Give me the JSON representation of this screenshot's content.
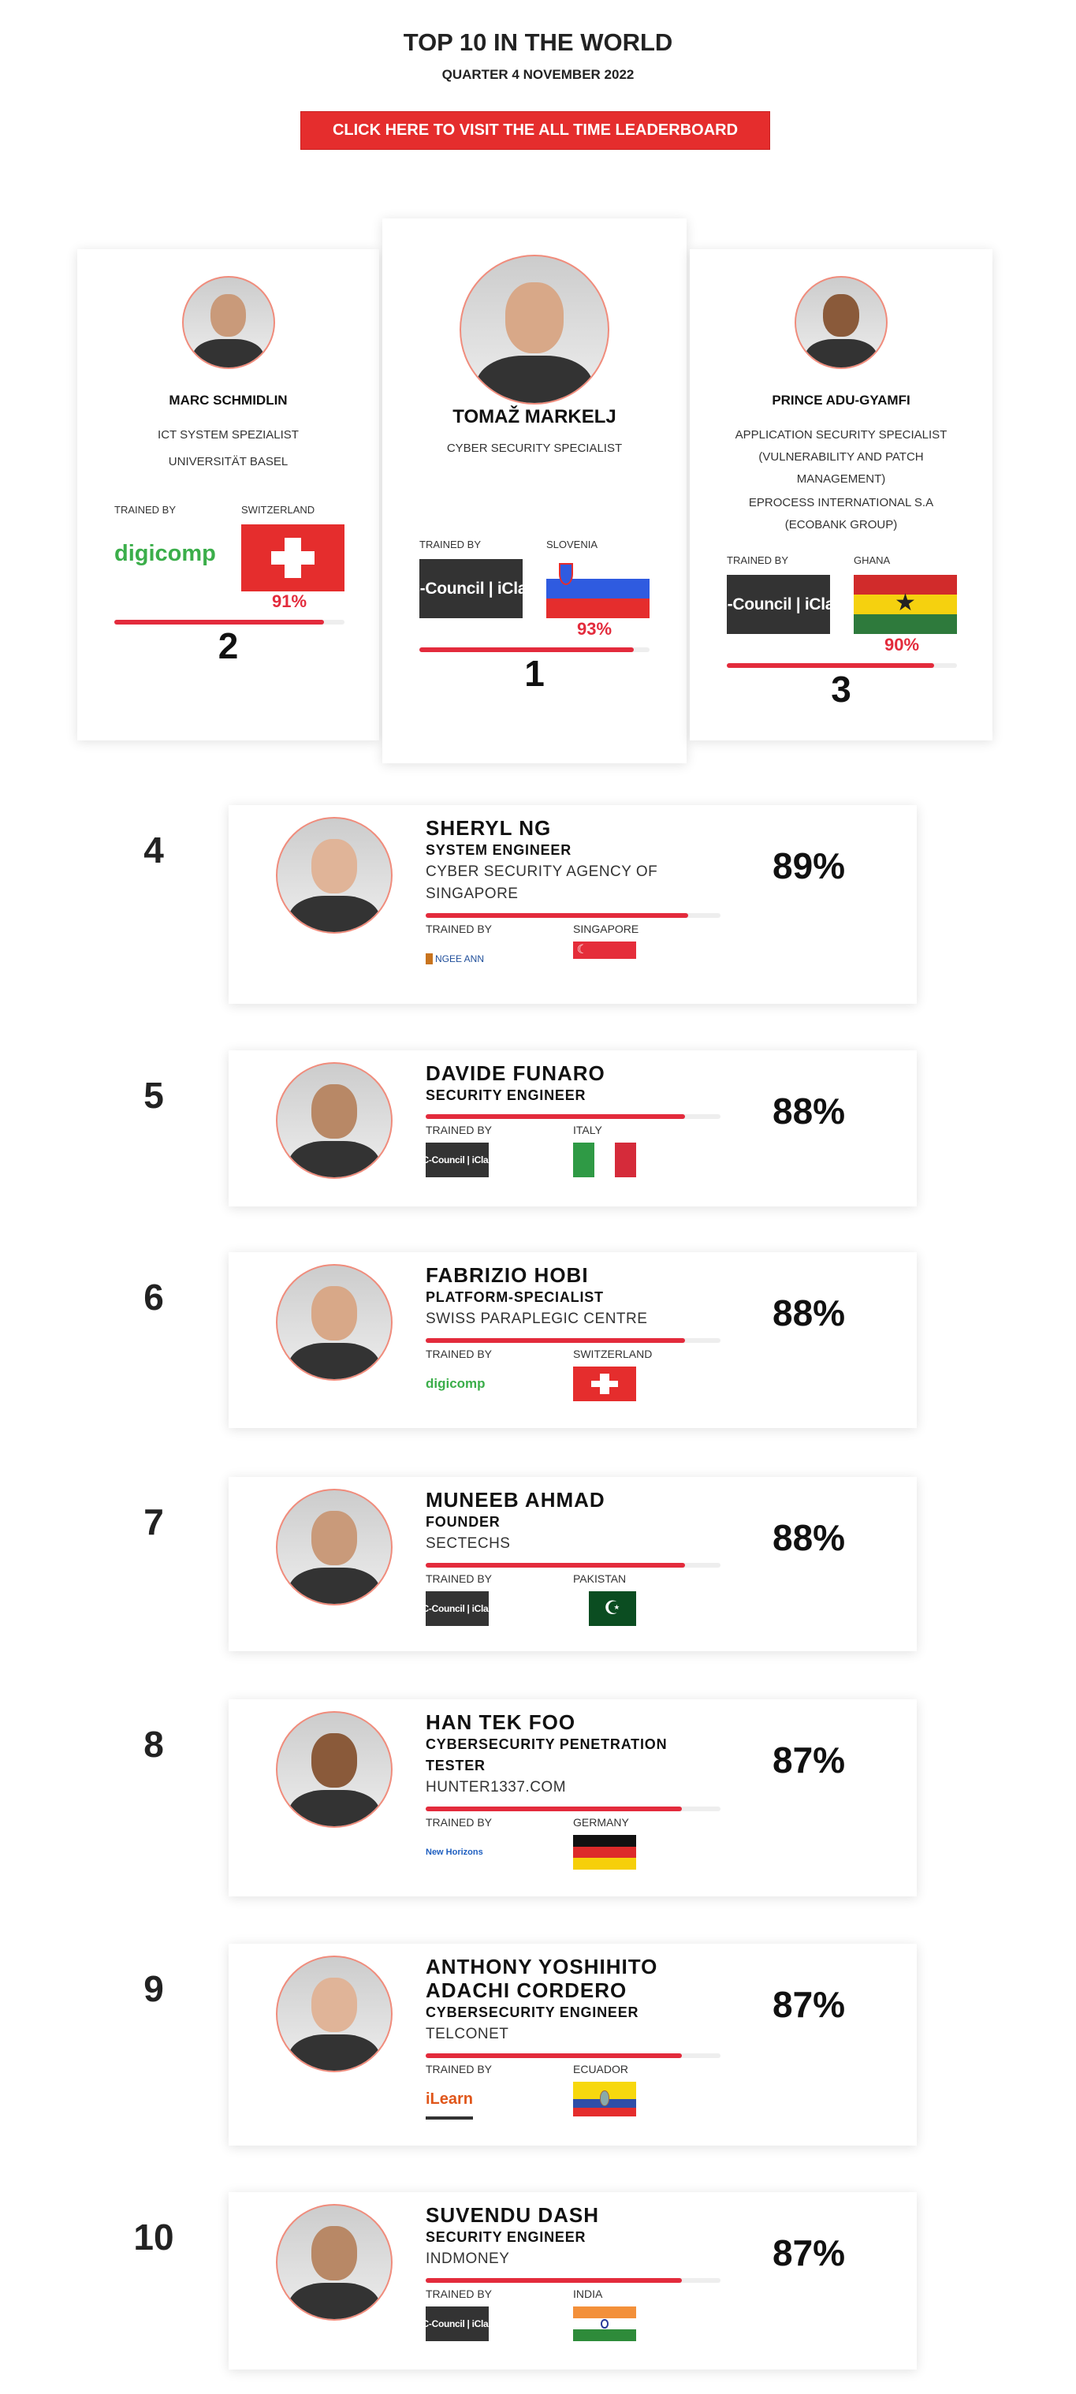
{
  "header": {
    "title": "TOP 10 IN THE WORLD",
    "subtitle": "QUARTER 4 NOVEMBER 2022",
    "cta": "CLICK HERE TO VISIT THE ALL TIME LEADERBOARD"
  },
  "colors": {
    "accent": "#e52d2d",
    "bar": "#e32b3c",
    "avatar_border": "#f08c7c"
  },
  "labels": {
    "trained_by": "TRAINED BY"
  },
  "podium": [
    {
      "rank": "1",
      "name": "TOMAŽ MARKELJ",
      "title": "CYBER SECURITY SPECIALIST",
      "company": "",
      "country": "SLOVENIA",
      "flag": "si",
      "trainer": "EC-Council | iClass",
      "trainer_type": "ec",
      "percent": "93%",
      "progress": 93
    },
    {
      "rank": "2",
      "name": "MARC SCHMIDLIN",
      "title": "ICT SYSTEM SPEZIALIST",
      "company": "UNIVERSITÄT BASEL",
      "country": "SWITZERLAND",
      "flag": "ch",
      "trainer": "digicomp",
      "trainer_type": "dg",
      "percent": "91%",
      "progress": 91
    },
    {
      "rank": "3",
      "name": "PRINCE ADU-GYAMFI",
      "title": "APPLICATION SECURITY SPECIALIST (VULNERABILITY AND PATCH MANAGEMENT)",
      "company": "EPROCESS INTERNATIONAL S.A (ECOBANK GROUP)",
      "country": "GHANA",
      "flag": "gh",
      "trainer": "EC-Council | iClass",
      "trainer_type": "ec",
      "percent": "90%",
      "progress": 90
    }
  ],
  "rows": [
    {
      "rank": "4",
      "name": "SHERYL NG",
      "title": "SYSTEM ENGINEER",
      "company": "CYBER SECURITY AGENCY OF SINGAPORE",
      "country": "SINGAPORE",
      "flag": "sg",
      "trainer": "NGEE ANN",
      "trainer_type": "na",
      "percent": "89%",
      "progress": 89
    },
    {
      "rank": "5",
      "name": "DAVIDE FUNARO",
      "title": "SECURITY ENGINEER",
      "company": "",
      "country": "ITALY",
      "flag": "it",
      "trainer": "EC-Council | iClass",
      "trainer_type": "ec",
      "percent": "88%",
      "progress": 88
    },
    {
      "rank": "6",
      "name": "FABRIZIO HOBI",
      "title": "PLATFORM-SPECIALIST",
      "company": "SWISS PARAPLEGIC CENTRE",
      "country": "SWITZERLAND",
      "flag": "ch",
      "trainer": "digicomp",
      "trainer_type": "dg",
      "percent": "88%",
      "progress": 88
    },
    {
      "rank": "7",
      "name": "MUNEEB AHMAD",
      "title": "FOUNDER",
      "company": "SECTECHS",
      "country": "PAKISTAN",
      "flag": "pk",
      "trainer": "EC-Council | iClass",
      "trainer_type": "ec",
      "percent": "88%",
      "progress": 88
    },
    {
      "rank": "8",
      "name": "HAN TEK FOO",
      "title": "CYBERSECURITY PENETRATION TESTER",
      "company": "HUNTER1337.COM",
      "country": "GERMANY",
      "flag": "de",
      "trainer": "New Horizons",
      "trainer_type": "nh",
      "percent": "87%",
      "progress": 87
    },
    {
      "rank": "9",
      "name": "ANTHONY YOSHIHITO ADACHI CORDERO",
      "title": "CYBERSECURITY ENGINEER",
      "company": "TELCONET",
      "country": "ECUADOR",
      "flag": "ec",
      "trainer": "iLearn",
      "trainer_type": "il",
      "percent": "87%",
      "progress": 87
    },
    {
      "rank": "10",
      "name": "SUVENDU DASH",
      "title": "SECURITY ENGINEER",
      "company": "INDMONEY",
      "country": "INDIA",
      "flag": "in",
      "trainer": "EC-Council | iClass",
      "trainer_type": "ec",
      "percent": "87%",
      "progress": 87
    }
  ]
}
